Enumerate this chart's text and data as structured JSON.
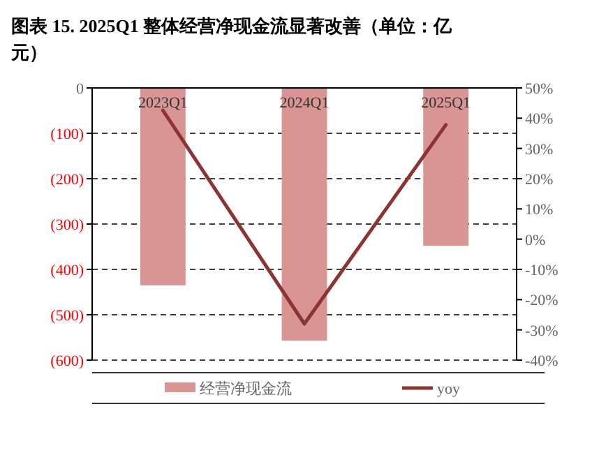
{
  "chart_data": {
    "type": "bar",
    "title": "图表 15. 2025Q1 整体经营净现金流显著改善（单位：亿元）",
    "categories": [
      "2023Q1",
      "2024Q1",
      "2025Q1"
    ],
    "series": [
      {
        "name": "经营净现金流",
        "color": "#d99594",
        "values": [
          -435,
          -557,
          -348
        ]
      },
      {
        "name": "yoy",
        "type": "line",
        "axis": "y2",
        "color": "#8b3432",
        "values": [
          42.6,
          -28,
          37.8
        ]
      }
    ],
    "ylim": [
      -600,
      0
    ],
    "yticks": [
      0,
      {
        "value": -100,
        "label": "(100)"
      },
      {
        "value": -200,
        "label": "(200)"
      },
      {
        "value": -300,
        "label": "(300)"
      },
      {
        "value": -400,
        "label": "(400)"
      },
      {
        "value": -500,
        "label": "(500)"
      },
      {
        "value": -600,
        "label": "(600)"
      }
    ],
    "y2lim": [
      -40,
      50
    ],
    "y2ticks": [
      {
        "value": 50,
        "label": "50%"
      },
      {
        "value": 40,
        "label": "40%"
      },
      {
        "value": 30,
        "label": "30%"
      },
      {
        "value": 20,
        "label": "20%"
      },
      {
        "value": 10,
        "label": "10%"
      },
      {
        "value": 0,
        "label": "0%"
      },
      {
        "value": -10,
        "label": "-10%"
      },
      {
        "value": -20,
        "label": "-20%"
      },
      {
        "value": -30,
        "label": "-30%"
      },
      {
        "value": -40,
        "label": "-40%"
      }
    ],
    "grid": "y",
    "legend": "bottom",
    "line_style": "solid",
    "marker": "none"
  }
}
